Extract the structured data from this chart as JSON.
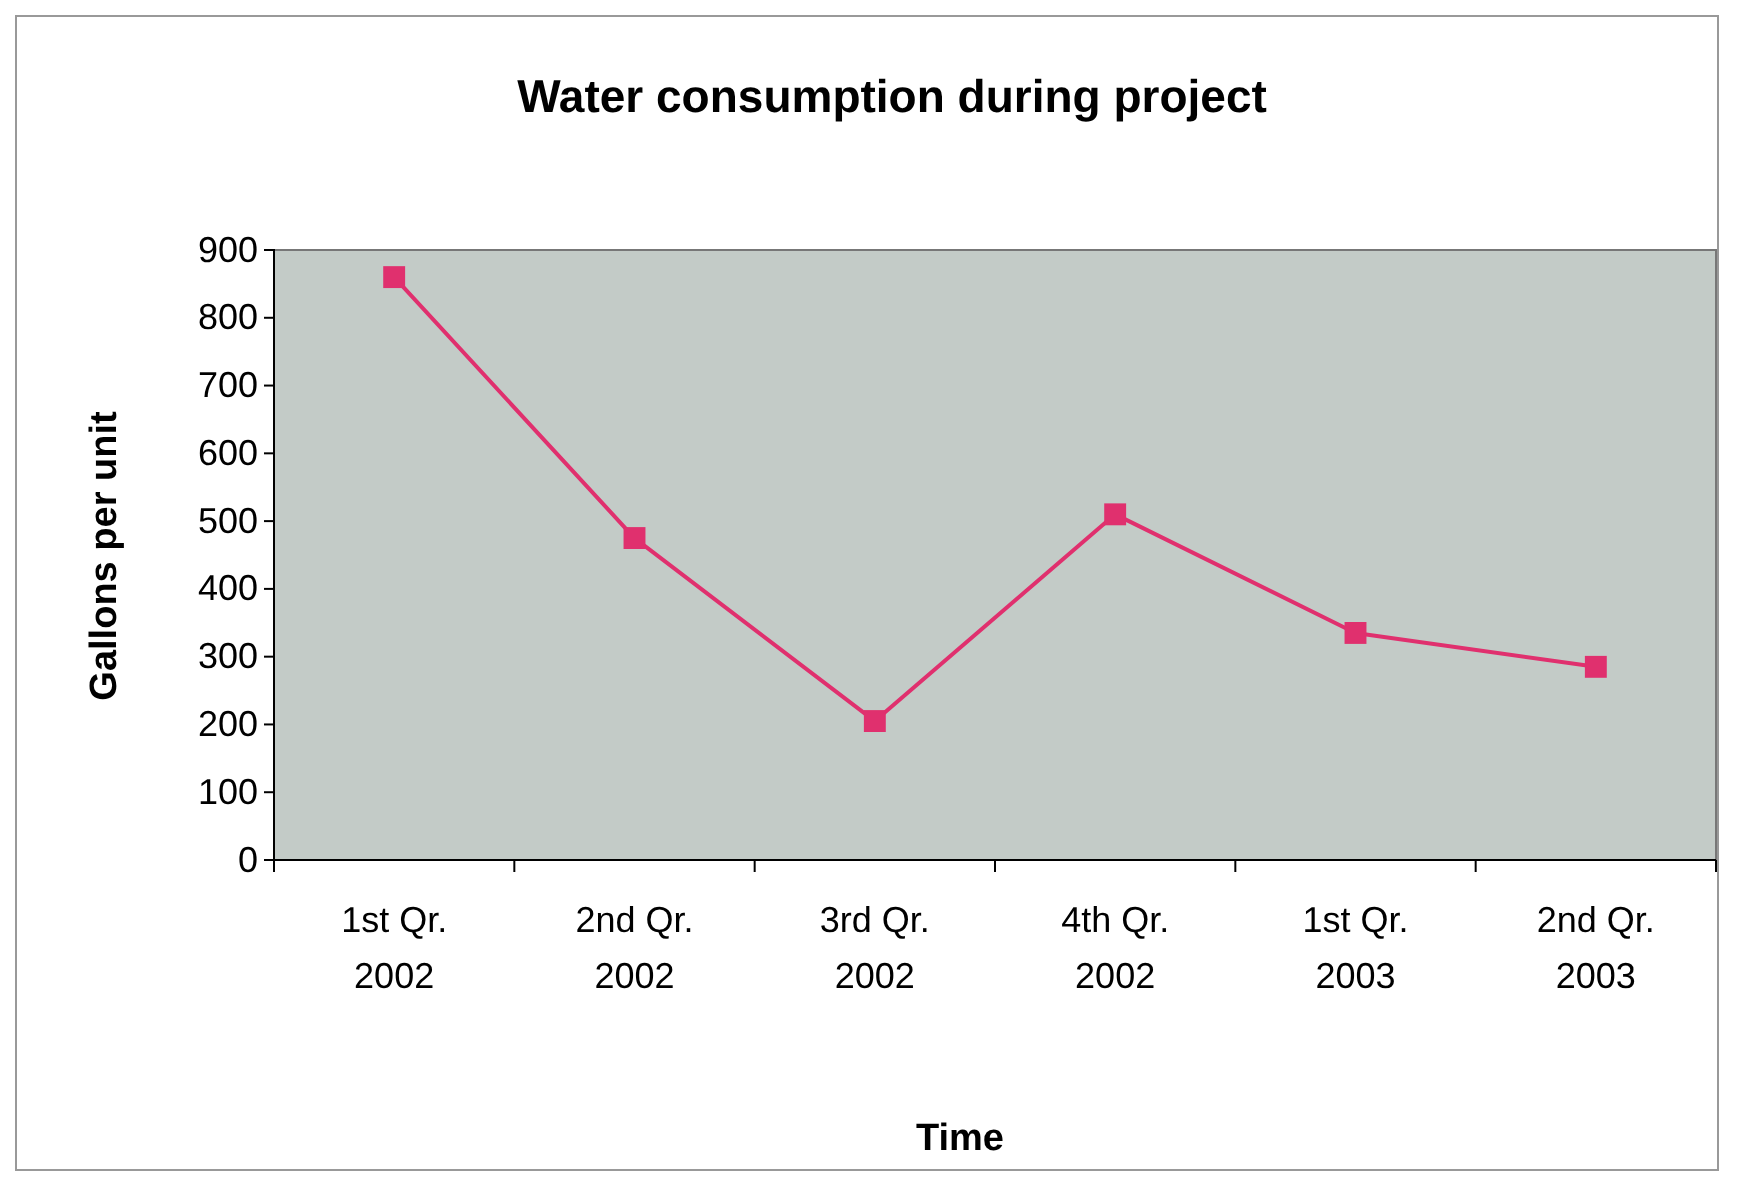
{
  "chart_data": {
    "type": "line",
    "title": "Water consumption during project",
    "xlabel": "Time",
    "ylabel": "Gallons per unit",
    "categories": [
      "1st Qr. 2002",
      "2nd Qr. 2002",
      "3rd Qr. 2002",
      "4th Qr. 2002",
      "1st Qr. 2003",
      "2nd Qr. 2003"
    ],
    "series": [
      {
        "color": "#e0306e",
        "values": [
          860,
          475,
          205,
          510,
          335,
          285
        ]
      }
    ],
    "ylim": [
      0,
      900
    ],
    "yticks": [
      0,
      100,
      200,
      300,
      400,
      500,
      600,
      700,
      800,
      900
    ],
    "grid": false,
    "marker": "square",
    "line_style": "solid"
  }
}
